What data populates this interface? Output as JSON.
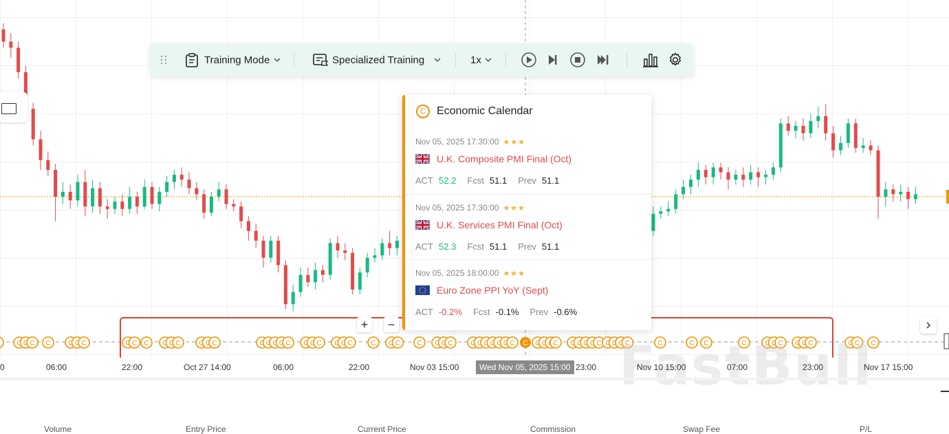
{
  "toolbar": {
    "training_mode_label": "Training Mode",
    "specialized_training_label": "Specialized Training",
    "speed_label": "1x"
  },
  "popup": {
    "title": "Economic Calendar",
    "badge": "C",
    "events": [
      {
        "time": "Nov 05, 2025 17:30:00",
        "stars": "★★★",
        "flag": "uk",
        "name": "U.K. Composite PMI Final (Oct)",
        "act_label": "ACT",
        "act": "52.2",
        "fcst_label": "Fcst",
        "fcst": "51.1",
        "prev_label": "Prev",
        "prev": "51.1",
        "act_dir": "up"
      },
      {
        "time": "Nov 05, 2025 17:30:00",
        "stars": "★★★",
        "flag": "uk",
        "name": "U.K. Services PMI Final (Oct)",
        "act_label": "ACT",
        "act": "52.3",
        "fcst_label": "Fcst",
        "fcst": "51.1",
        "prev_label": "Prev",
        "prev": "51.1",
        "act_dir": "up"
      },
      {
        "time": "Nov 05, 2025 18:00:00",
        "stars": "★★★",
        "flag": "eu",
        "name": "Euro Zone PPI YoY (Sept)",
        "act_label": "ACT",
        "act": "-0.2%",
        "fcst_label": "Fcst",
        "fcst": "-0.1%",
        "prev_label": "Prev",
        "prev": "-0.6%",
        "act_dir": "down"
      }
    ]
  },
  "x_axis": {
    "labels": [
      "0",
      "06:00",
      "22:00",
      "Oct 27 14:00",
      "06:00",
      "22:00",
      "Nov 03 15:00",
      "23:00",
      "Nov 10 15:00",
      "07:00",
      "23:00",
      "Nov 17 15:00"
    ],
    "cursor_label": "Wed Nov 05, 2025 15:00"
  },
  "zoom": {
    "plus": "+",
    "minus": "−"
  },
  "watermark": "FastBull",
  "positions_table": {
    "columns": [
      "Volume",
      "Entry Price",
      "Current Price",
      "Commission",
      "Swap Fee",
      "P/L"
    ]
  },
  "colors": {
    "up": "#19b983",
    "down": "#e24b4b",
    "accent": "#f39200",
    "toolbar_bg": "#e9f6f2",
    "highlight": "#d9432f"
  },
  "icons": [
    "drag-handle-icon",
    "clipboard-icon",
    "chevron-down-icon",
    "training-doc-icon",
    "play-icon",
    "step-forward-icon",
    "stop-icon",
    "skip-end-icon",
    "bar-chart-icon",
    "gear-icon",
    "rectangle-tool-icon",
    "chevron-right-icon"
  ],
  "chart_data": {
    "type": "candlestick",
    "candles": [
      [
        1.1635,
        1.1625,
        1.164,
        1.162
      ],
      [
        1.1625,
        1.162,
        1.1632,
        1.1612
      ],
      [
        1.162,
        1.16,
        1.1625,
        1.1595
      ],
      [
        1.16,
        1.157,
        1.1605,
        1.1565
      ],
      [
        1.157,
        1.1545,
        1.1575,
        1.154
      ],
      [
        1.1545,
        1.1528,
        1.1552,
        1.152
      ],
      [
        1.1528,
        1.152,
        1.1535,
        1.1515
      ],
      [
        1.152,
        1.1498,
        1.1525,
        1.1478
      ],
      [
        1.1498,
        1.1502,
        1.151,
        1.1492
      ],
      [
        1.1502,
        1.1495,
        1.1508,
        1.1488
      ],
      [
        1.1495,
        1.151,
        1.1516,
        1.149
      ],
      [
        1.151,
        1.149,
        1.152,
        1.1482
      ],
      [
        1.149,
        1.1505,
        1.1512,
        1.1485
      ],
      [
        1.1505,
        1.149,
        1.151,
        1.1484
      ],
      [
        1.149,
        1.1488,
        1.1496,
        1.148
      ],
      [
        1.1488,
        1.1494,
        1.1498,
        1.1484
      ],
      [
        1.1494,
        1.1488,
        1.15,
        1.1482
      ],
      [
        1.1488,
        1.1498,
        1.1506,
        1.1484
      ],
      [
        1.1498,
        1.149,
        1.1502,
        1.1484
      ],
      [
        1.149,
        1.1506,
        1.1512,
        1.1488
      ],
      [
        1.1506,
        1.1492,
        1.151,
        1.1488
      ],
      [
        1.1492,
        1.1502,
        1.1506,
        1.1486
      ],
      [
        1.1502,
        1.151,
        1.1515,
        1.1498
      ],
      [
        1.151,
        1.1516,
        1.152,
        1.1504
      ],
      [
        1.1516,
        1.1512,
        1.1522,
        1.1506
      ],
      [
        1.1512,
        1.1505,
        1.1518,
        1.15
      ],
      [
        1.1505,
        1.15,
        1.151,
        1.1495
      ],
      [
        1.15,
        1.1485,
        1.1504,
        1.148
      ],
      [
        1.1485,
        1.1498,
        1.1502,
        1.1482
      ],
      [
        1.1498,
        1.1504,
        1.151,
        1.1494
      ],
      [
        1.1504,
        1.1492,
        1.1508,
        1.1488
      ],
      [
        1.1492,
        1.149,
        1.1496,
        1.1486
      ],
      [
        1.149,
        1.1478,
        1.1494,
        1.1472
      ],
      [
        1.1478,
        1.147,
        1.1482,
        1.1462
      ],
      [
        1.147,
        1.1462,
        1.1476,
        1.1456
      ],
      [
        1.1462,
        1.1448,
        1.1466,
        1.144
      ],
      [
        1.1448,
        1.1462,
        1.1466,
        1.1444
      ],
      [
        1.1462,
        1.1442,
        1.1466,
        1.1436
      ],
      [
        1.1442,
        1.141,
        1.1446,
        1.1406
      ],
      [
        1.141,
        1.142,
        1.1426,
        1.1404
      ],
      [
        1.142,
        1.1434,
        1.144,
        1.1416
      ],
      [
        1.1434,
        1.1428,
        1.144,
        1.1424
      ],
      [
        1.1428,
        1.1438,
        1.1444,
        1.1422
      ],
      [
        1.1438,
        1.1434,
        1.1442,
        1.1428
      ],
      [
        1.1434,
        1.146,
        1.1464,
        1.143
      ],
      [
        1.146,
        1.1454,
        1.1466,
        1.1448
      ],
      [
        1.1454,
        1.1452,
        1.146,
        1.1446
      ],
      [
        1.1452,
        1.1422,
        1.1456,
        1.1418
      ],
      [
        1.1422,
        1.1436,
        1.144,
        1.1418
      ],
      [
        1.1436,
        1.1448,
        1.1452,
        1.1432
      ],
      [
        1.1448,
        1.145,
        1.1456,
        1.1444
      ],
      [
        1.145,
        1.146,
        1.1464,
        1.1446
      ],
      [
        1.146,
        1.1456,
        1.147,
        1.145
      ],
      [
        1.1456,
        1.1462,
        1.1466,
        1.145
      ],
      [
        1.1462,
        1.1458,
        1.1468,
        1.1452
      ]
    ],
    "candles_right": [
      [
        1.147,
        1.1484,
        1.149,
        1.1466
      ],
      [
        1.1484,
        1.1486,
        1.149,
        1.148
      ],
      [
        1.1486,
        1.1488,
        1.1494,
        1.1482
      ],
      [
        1.1488,
        1.15,
        1.1504,
        1.1484
      ],
      [
        1.15,
        1.1506,
        1.1512,
        1.1496
      ],
      [
        1.1506,
        1.1512,
        1.1516,
        1.15
      ],
      [
        1.1512,
        1.152,
        1.1526,
        1.1506
      ],
      [
        1.152,
        1.1514,
        1.1524,
        1.1508
      ],
      [
        1.1514,
        1.1522,
        1.1526,
        1.1508
      ],
      [
        1.1522,
        1.1518,
        1.1526,
        1.1512
      ],
      [
        1.1518,
        1.1512,
        1.1522,
        1.1504
      ],
      [
        1.1512,
        1.1516,
        1.152,
        1.1508
      ],
      [
        1.1516,
        1.1512,
        1.1522,
        1.1506
      ],
      [
        1.1512,
        1.1518,
        1.1524,
        1.1508
      ],
      [
        1.1518,
        1.1514,
        1.1522,
        1.1506
      ],
      [
        1.1514,
        1.1516,
        1.152,
        1.1508
      ],
      [
        1.1516,
        1.1522,
        1.1526,
        1.1512
      ],
      [
        1.1522,
        1.1558,
        1.1562,
        1.1518
      ],
      [
        1.1558,
        1.1552,
        1.1564,
        1.1548
      ],
      [
        1.1552,
        1.1556,
        1.156,
        1.1546
      ],
      [
        1.1556,
        1.155,
        1.1562,
        1.1544
      ],
      [
        1.155,
        1.156,
        1.1566,
        1.1546
      ],
      [
        1.156,
        1.1564,
        1.1572,
        1.1554
      ],
      [
        1.1564,
        1.155,
        1.1574,
        1.1544
      ],
      [
        1.155,
        1.1536,
        1.1556,
        1.153
      ],
      [
        1.1536,
        1.1542,
        1.1548,
        1.1532
      ],
      [
        1.1542,
        1.1558,
        1.1562,
        1.1538
      ],
      [
        1.1558,
        1.1538,
        1.1562,
        1.1534
      ],
      [
        1.1538,
        1.154,
        1.1546,
        1.1534
      ],
      [
        1.154,
        1.1536,
        1.1544,
        1.1532
      ],
      [
        1.1536,
        1.1498,
        1.154,
        1.148
      ],
      [
        1.1498,
        1.1504,
        1.151,
        1.149
      ],
      [
        1.1504,
        1.15,
        1.1508,
        1.1494
      ],
      [
        1.15,
        1.1502,
        1.1508,
        1.1494
      ],
      [
        1.1502,
        1.1496,
        1.1506,
        1.1488
      ],
      [
        1.1496,
        1.15,
        1.1506,
        1.1492
      ]
    ],
    "current_price": 1.1498
  }
}
